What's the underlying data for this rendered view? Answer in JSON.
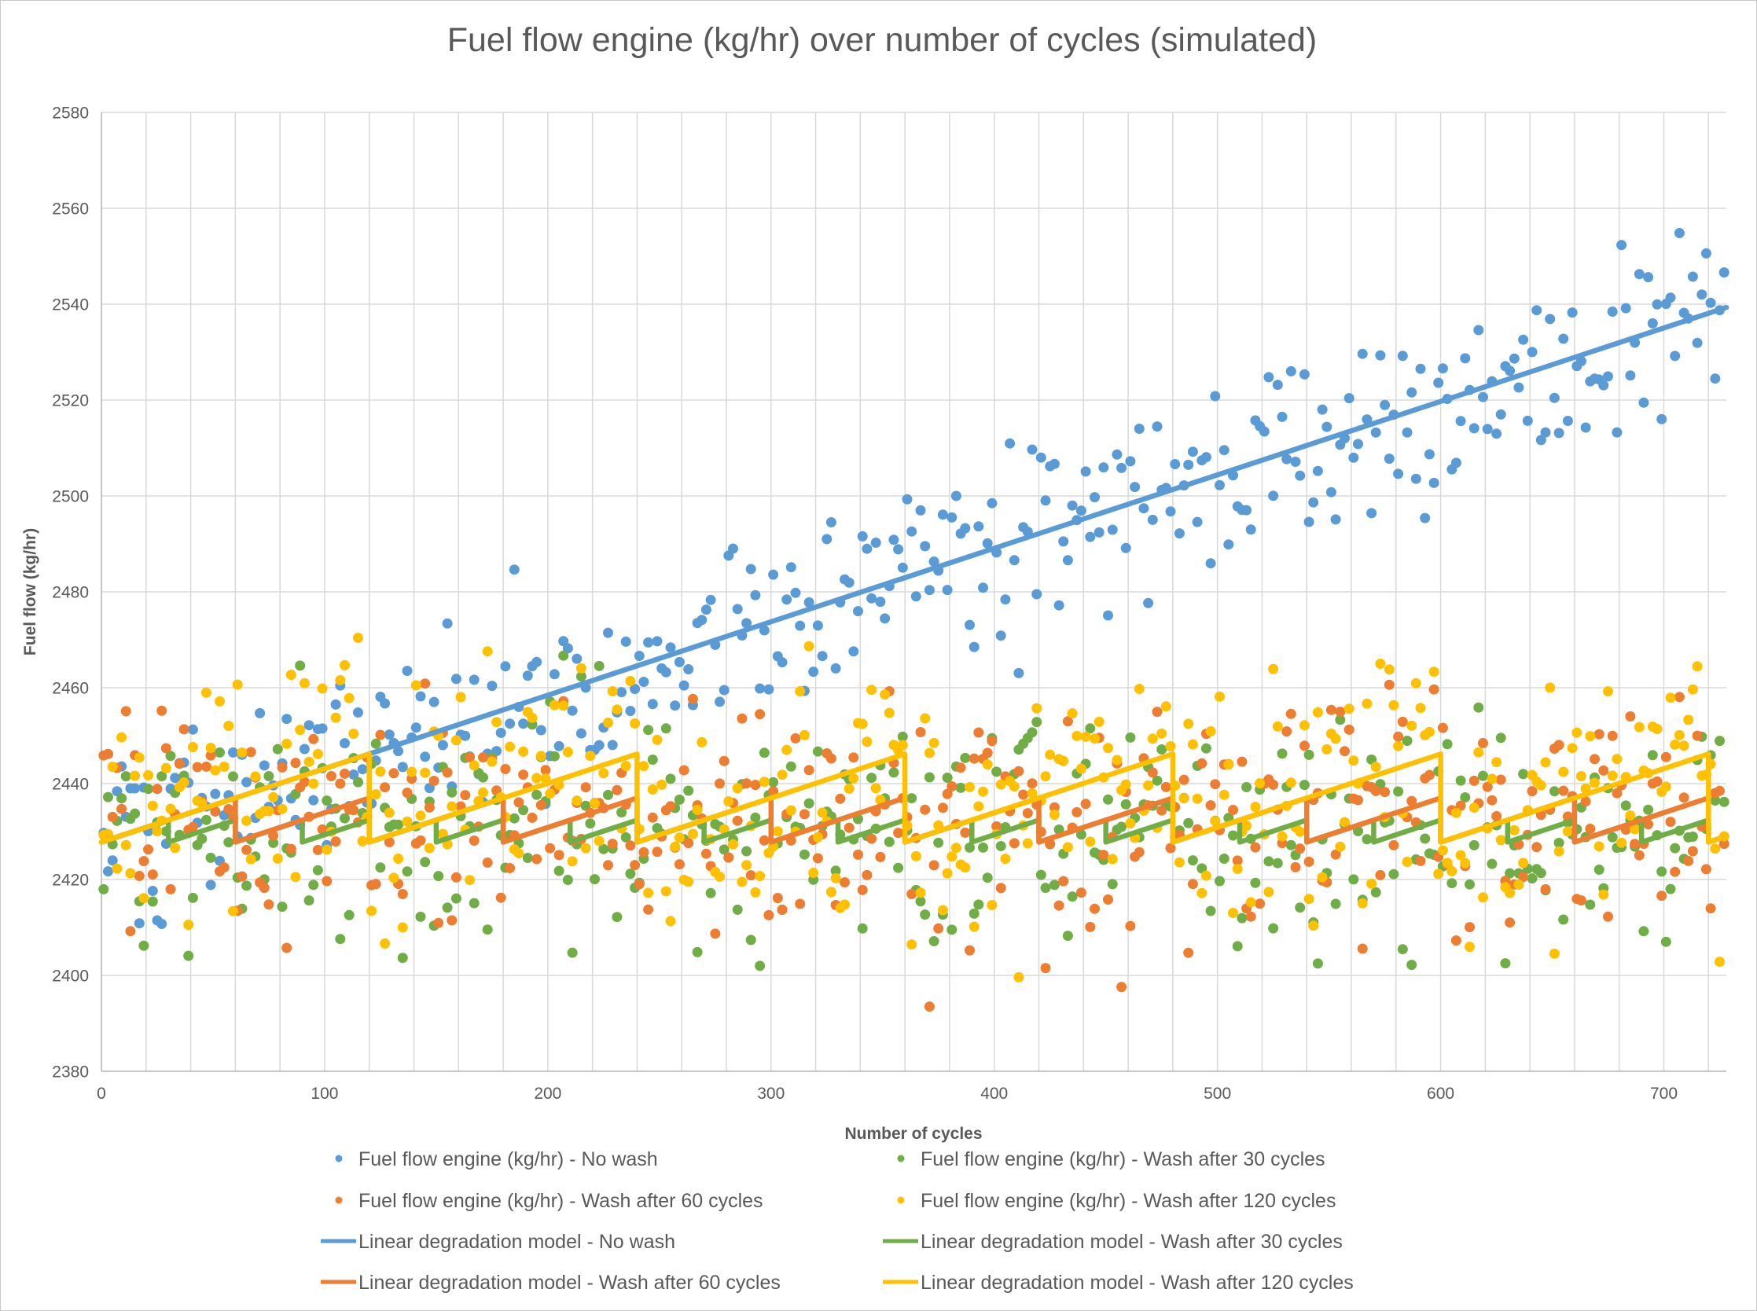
{
  "style": {
    "background": "#ffffff",
    "grid_color": "#d9d9d9",
    "axis_color": "#bfbfbf",
    "text_color": "#595959",
    "blue": "#5b9bd5",
    "green": "#70ad47",
    "orange": "#ed7d31",
    "yellow": "#ffc000"
  },
  "chart_data": {
    "type": "scatter",
    "title": "Fuel flow engine (kg/hr) over number of cycles (simulated)",
    "xlabel": "Number of cycles",
    "ylabel": "Fuel flow (kg/hr)",
    "xlim": [
      0,
      728
    ],
    "ylim": [
      2380,
      2580
    ],
    "x_major_ticks": [
      0,
      100,
      200,
      300,
      400,
      500,
      600,
      700
    ],
    "x_grid_step": 20,
    "y_ticks": [
      2380,
      2400,
      2420,
      2440,
      2460,
      2480,
      2500,
      2520,
      2540,
      2560,
      2580
    ],
    "grid": true,
    "legend_position": "bottom",
    "point_radius": 6.5,
    "line_width": 6.5,
    "series": [
      {
        "id": "fuel-flow-no-wash",
        "name": "Fuel flow engine (kg/hr) - No wash",
        "kind": "scatter",
        "color": "#5b9bd5",
        "marker": "circle",
        "n_points": 364,
        "x_start": 1,
        "x_step": 2,
        "noise_sd": 9.5,
        "seed": 101,
        "model": {
          "start": 2427.8,
          "slope": 0.1532,
          "wash_interval": 0
        }
      },
      {
        "id": "fuel-flow-wash-30",
        "name": "Fuel flow engine (kg/hr) - Wash after 30 cycles",
        "kind": "scatter",
        "color": "#70ad47",
        "marker": "circle",
        "n_points": 364,
        "x_start": 1,
        "x_step": 2,
        "noise_sd": 12,
        "seed": 102,
        "model": {
          "start": 2427.8,
          "slope": 0.1532,
          "wash_interval": 30
        }
      },
      {
        "id": "fuel-flow-wash-60",
        "name": "Fuel flow engine (kg/hr) - Wash after 60 cycles",
        "kind": "scatter",
        "color": "#ed7d31",
        "marker": "circle",
        "n_points": 364,
        "x_start": 1,
        "x_step": 2,
        "noise_sd": 12,
        "seed": 103,
        "model": {
          "start": 2427.8,
          "slope": 0.1532,
          "wash_interval": 60
        }
      },
      {
        "id": "fuel-flow-wash-120",
        "name": "Fuel flow engine (kg/hr) - Wash after 120 cycles",
        "kind": "scatter",
        "color": "#ffc000",
        "marker": "circle",
        "n_points": 364,
        "x_start": 1,
        "x_step": 2,
        "noise_sd": 12,
        "seed": 104,
        "model": {
          "start": 2427.8,
          "slope": 0.1532,
          "wash_interval": 120
        }
      },
      {
        "id": "model-no-wash",
        "name": "Linear degradation model - No wash",
        "kind": "line",
        "color": "#5b9bd5",
        "model": {
          "start": 2427.8,
          "slope": 0.1532,
          "wash_interval": 0
        }
      },
      {
        "id": "model-wash-30",
        "name": "Linear degradation model - Wash after 30 cycles",
        "kind": "line",
        "color": "#70ad47",
        "model": {
          "start": 2427.8,
          "slope": 0.1532,
          "wash_interval": 30
        }
      },
      {
        "id": "model-wash-60",
        "name": "Linear degradation model - Wash after  60 cycles",
        "kind": "line",
        "color": "#ed7d31",
        "model": {
          "start": 2427.8,
          "slope": 0.1532,
          "wash_interval": 60
        }
      },
      {
        "id": "model-wash-120",
        "name": "Linear degradation model - Wash after 120 cycles",
        "kind": "line",
        "color": "#ffc000",
        "model": {
          "start": 2427.8,
          "slope": 0.1532,
          "wash_interval": 120
        }
      }
    ]
  }
}
